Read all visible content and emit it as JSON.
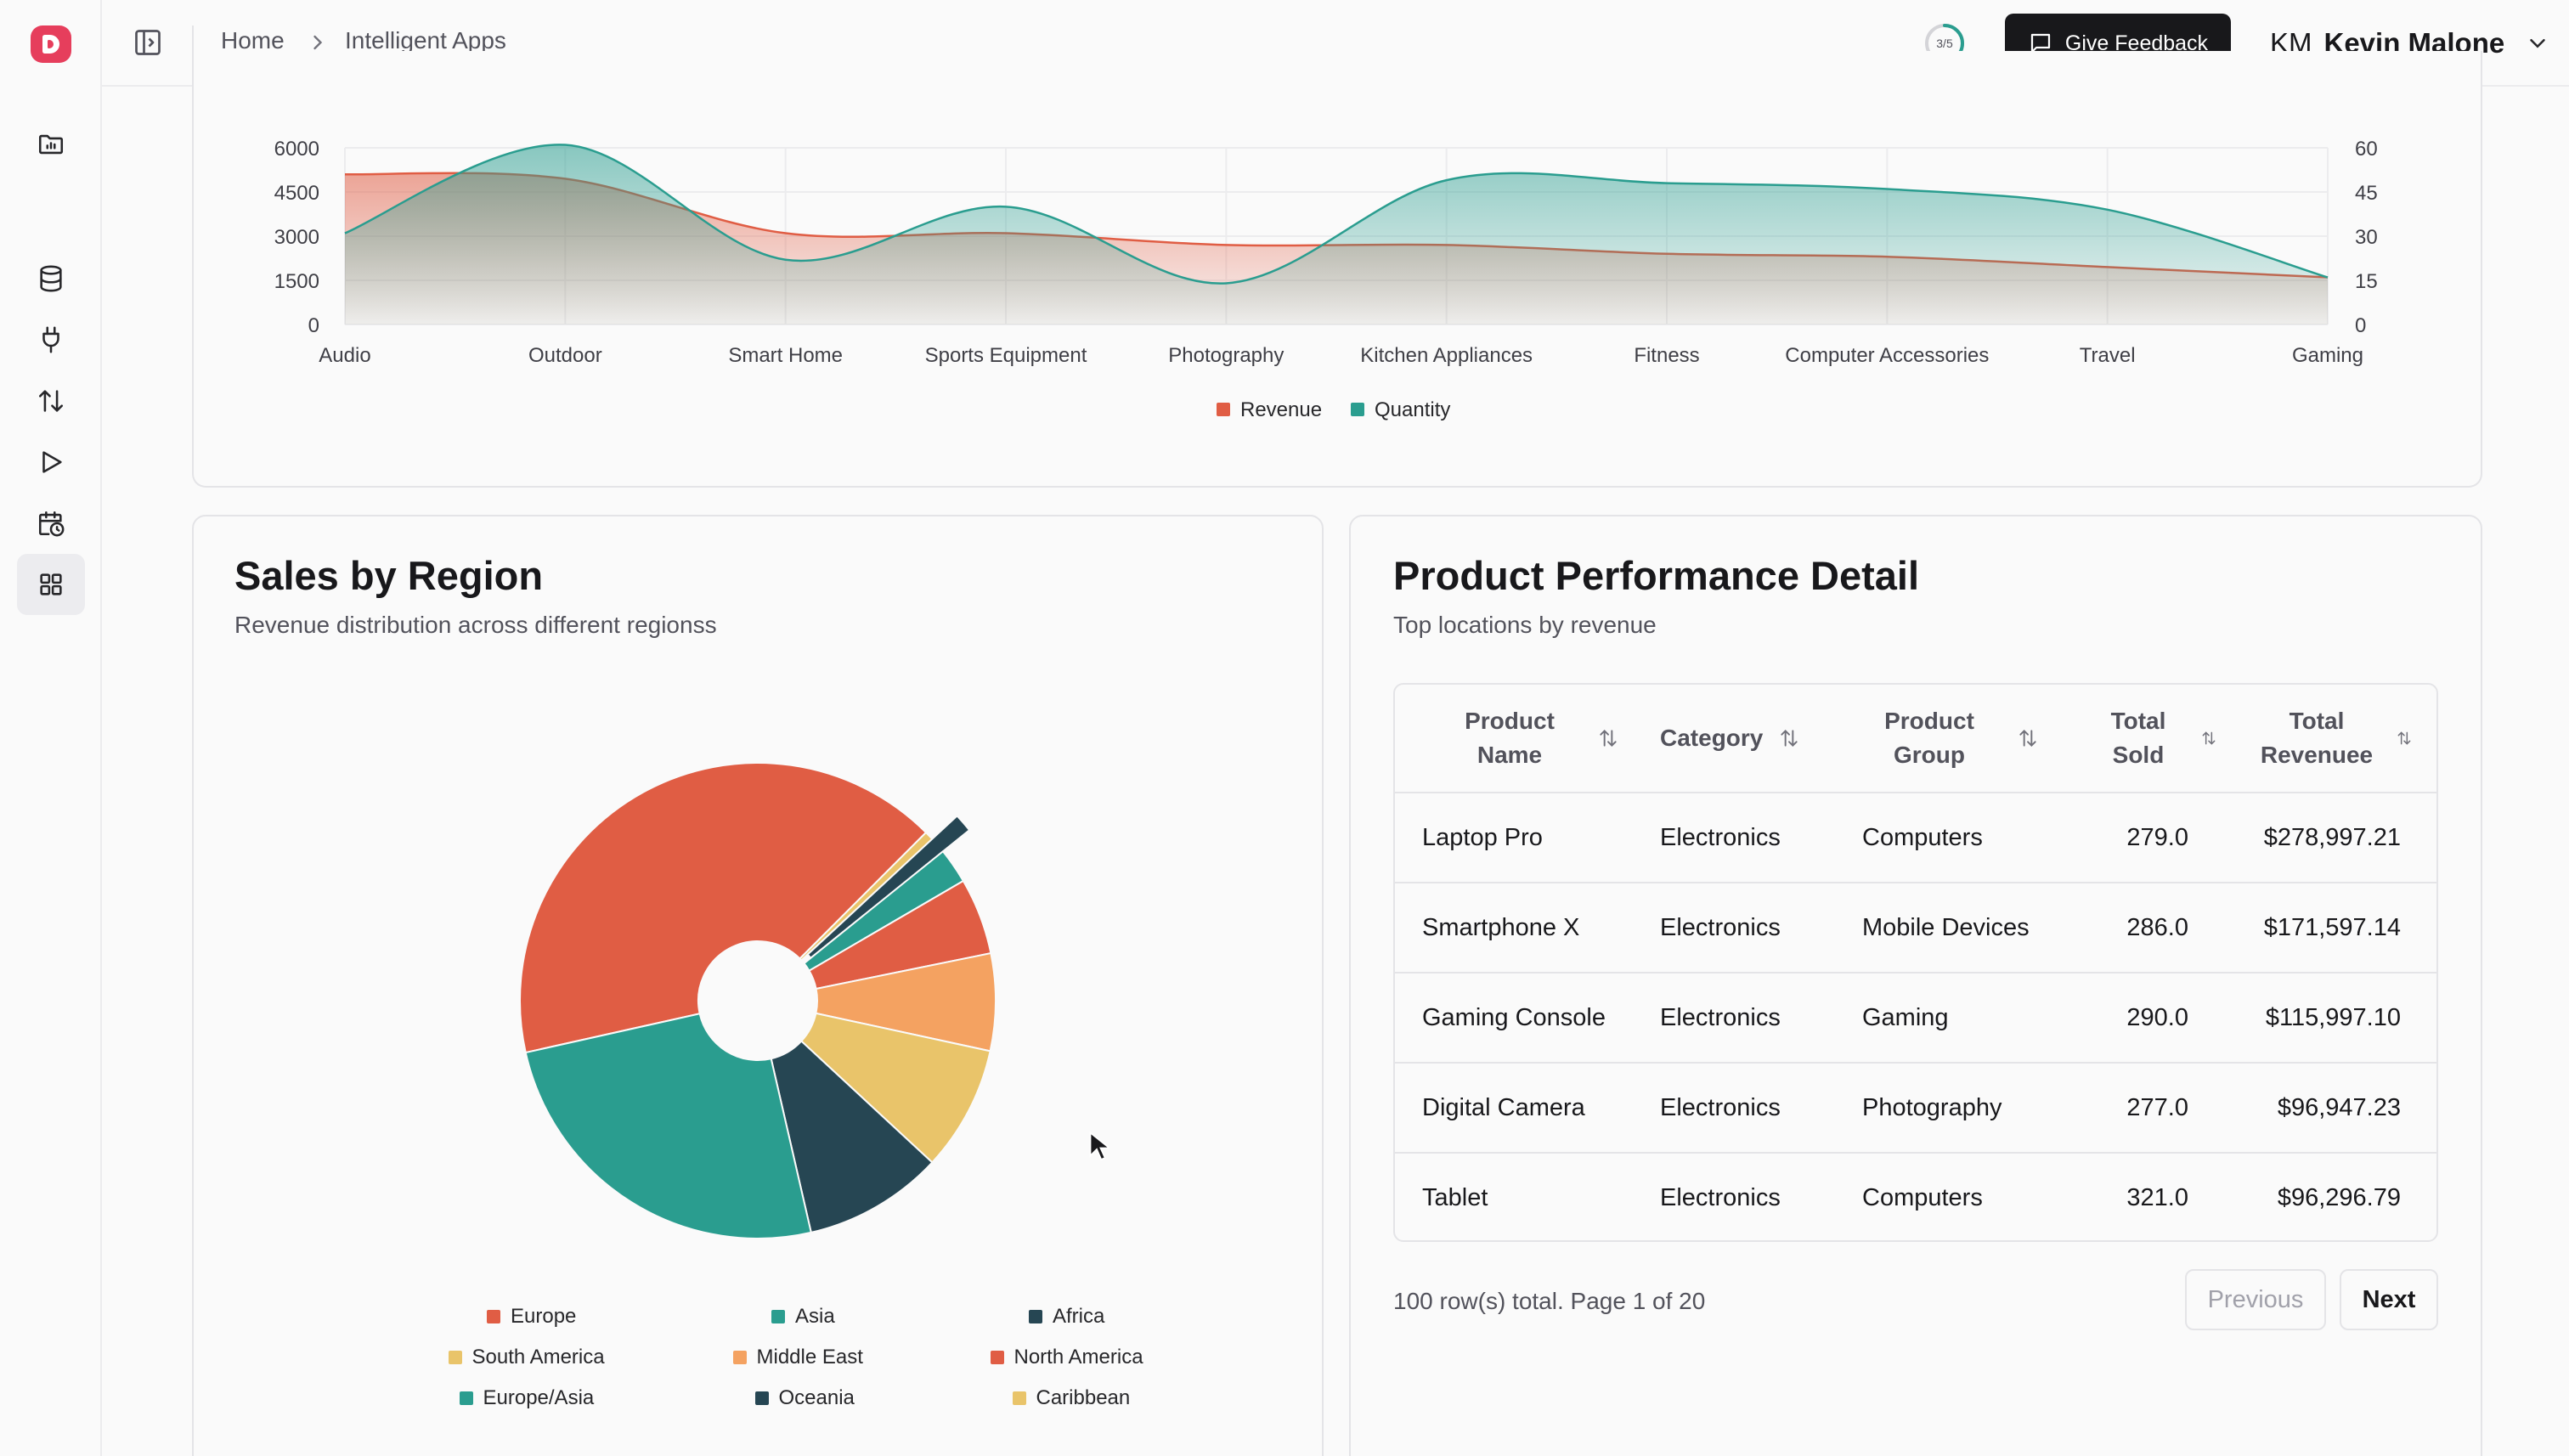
{
  "header": {
    "breadcrumb": [
      "Home",
      "Intelligent Apps"
    ],
    "progress": "3/5",
    "progress_fraction": 0.6,
    "feedback_label": "Give Feedback",
    "user_initials": "KM",
    "user_name": "Kevin Malone"
  },
  "sidebar": {
    "icons": [
      "folder-chart-icon",
      "database-icon",
      "plug-icon",
      "arrows-up-down-icon",
      "play-icon",
      "calendar-clock-icon",
      "grid-icon"
    ],
    "active_index": 6
  },
  "colors": {
    "revenue": "#e05d44",
    "quantity": "#2a9d8f",
    "accent": "#18181b"
  },
  "chart_data": [
    {
      "type": "area",
      "categories": [
        "Audio",
        "Outdoor",
        "Smart Home",
        "Sports Equipment",
        "Photography",
        "Kitchen Appliances",
        "Fitness",
        "Computer Accessories",
        "Travel",
        "Gaming"
      ],
      "y_ticks_left": [
        "6000",
        "4500",
        "3000",
        "1500",
        "0"
      ],
      "y_ticks_right": [
        "60",
        "45",
        "30",
        "15",
        "0"
      ],
      "ylim_left": [
        0,
        6000
      ],
      "ylim_right": [
        0,
        60
      ],
      "legend_position": "bottom",
      "series": [
        {
          "name": "Revenue",
          "axis": "left",
          "color": "#e05d44",
          "values": [
            5100,
            4950,
            3100,
            3100,
            2700,
            2700,
            2400,
            2300,
            1950,
            1600
          ]
        },
        {
          "name": "Quantity",
          "axis": "right",
          "color": "#2a9d8f",
          "values": [
            31,
            61,
            22,
            40,
            14,
            49,
            48,
            46,
            39,
            16
          ]
        }
      ]
    },
    {
      "type": "pie",
      "title": "Sales by Region",
      "subtitle": "Revenue distribution across different regionss",
      "legend_position": "bottom",
      "slices": [
        {
          "label": "Europe",
          "value": 41.0,
          "color": "#e05d44"
        },
        {
          "label": "Middle East",
          "value": 0.6,
          "color": "#e9c46a"
        },
        {
          "label": "Africa",
          "value": 1.1,
          "color": "#264653"
        },
        {
          "label": "Asia",
          "value": 2.4,
          "color": "#2a9d8f"
        },
        {
          "label": "North America",
          "value": 5.2,
          "color": "#e05d44"
        },
        {
          "label": "Middle East",
          "value": 6.6,
          "color": "#f4a261"
        },
        {
          "label": "South America",
          "value": 8.5,
          "color": "#e9c46a"
        },
        {
          "label": "Oceania",
          "value": 9.5,
          "color": "#264653"
        },
        {
          "label": "Asia",
          "value": 25.1,
          "color": "#2a9d8f"
        }
      ],
      "legend": [
        {
          "label": "Europe",
          "color": "#e05d44"
        },
        {
          "label": "Asia",
          "color": "#2a9d8f"
        },
        {
          "label": "Africa",
          "color": "#264653"
        },
        {
          "label": "South America",
          "color": "#e9c46a"
        },
        {
          "label": "Middle East",
          "color": "#f4a261"
        },
        {
          "label": "North America",
          "color": "#e05d44"
        },
        {
          "label": "Europe/Asia",
          "color": "#2a9d8f"
        },
        {
          "label": "Oceania",
          "color": "#264653"
        },
        {
          "label": "Caribbean",
          "color": "#e9c46a"
        }
      ]
    }
  ],
  "table_card": {
    "title": "Product Performance Detail",
    "subtitle": "Top locations by revenue",
    "columns": [
      "Product Name",
      "Category",
      "Product Group",
      "Total Sold",
      "Total Revenuee"
    ],
    "rows": [
      [
        "Laptop Pro",
        "Electronics",
        "Computers",
        "279.0",
        "$278,997.21"
      ],
      [
        "Smartphone X",
        "Electronics",
        "Mobile Devices",
        "286.0",
        "$171,597.14"
      ],
      [
        "Gaming Console",
        "Electronics",
        "Gaming",
        "290.0",
        "$115,997.10"
      ],
      [
        "Digital Camera",
        "Electronics",
        "Photography",
        "277.0",
        "$96,947.23"
      ],
      [
        "Tablet",
        "Electronics",
        "Computers",
        "321.0",
        "$96,296.79"
      ]
    ],
    "pager_text": "100 row(s) total. Page 1 of 20",
    "prev_label": "Previous",
    "next_label": "Next"
  }
}
